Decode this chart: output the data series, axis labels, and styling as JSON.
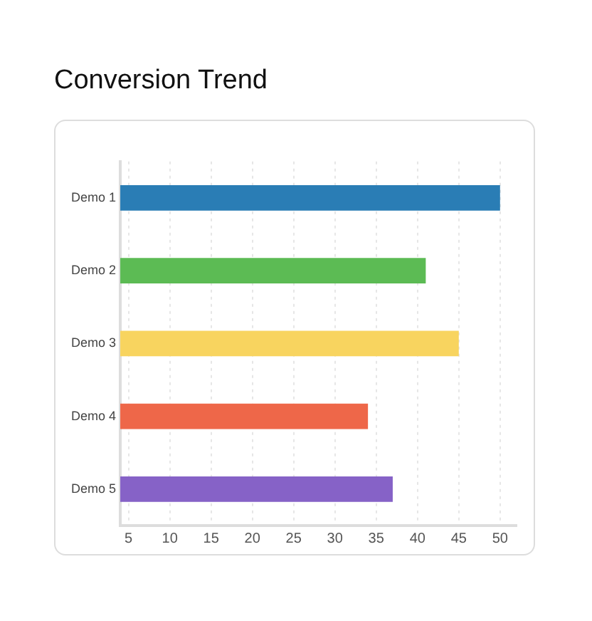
{
  "chart_data": {
    "type": "bar",
    "orientation": "horizontal",
    "title": "Conversion Trend",
    "categories": [
      "Demo 1",
      "Demo 2",
      "Demo 3",
      "Demo 4",
      "Demo 5"
    ],
    "values": [
      50,
      41,
      45,
      34,
      37
    ],
    "colors": [
      "#2a7db5",
      "#5cbb54",
      "#f8d45f",
      "#ee6749",
      "#8662c7"
    ],
    "xlim": [
      4,
      52
    ],
    "xticks": [
      5,
      10,
      15,
      20,
      25,
      30,
      35,
      40,
      45,
      50
    ],
    "grid": "x",
    "legend": false
  }
}
